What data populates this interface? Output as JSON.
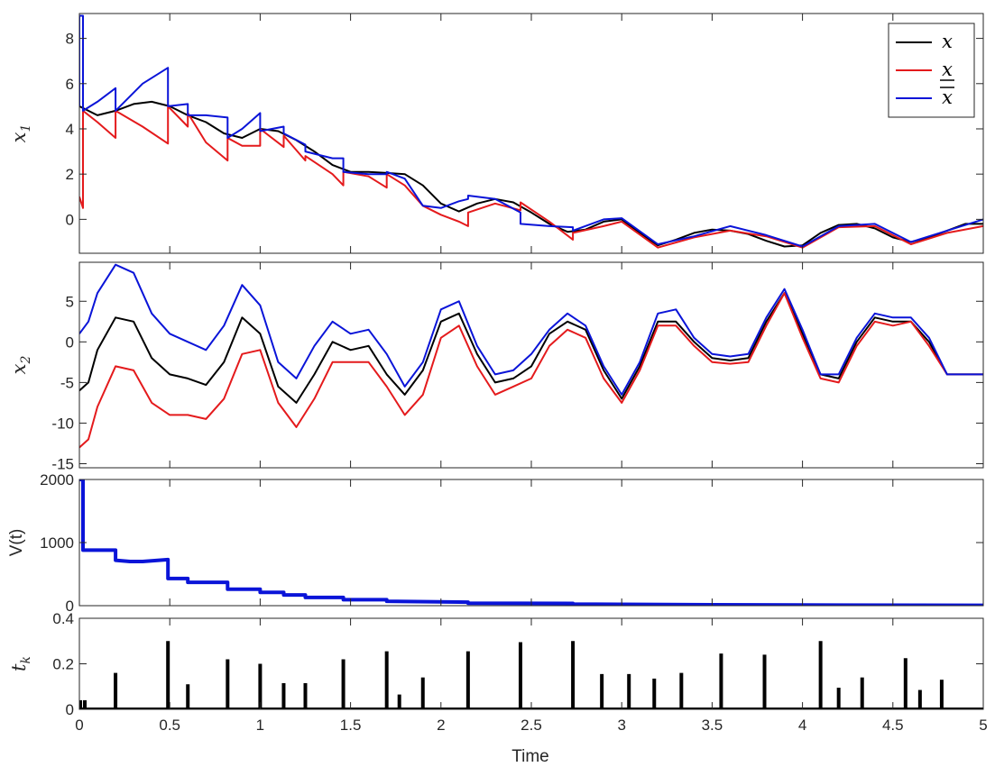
{
  "chart_data": [
    {
      "type": "line",
      "ylabel_main": "x",
      "ylabel_sub": "1",
      "xlabel": "",
      "xlim": [
        0,
        5
      ],
      "ylim": [
        -1.5,
        9.1
      ],
      "yticks": [
        0,
        2,
        4,
        6,
        8
      ],
      "xticks": [],
      "legend": {
        "placement": "top-right",
        "entries": [
          {
            "label": "x",
            "accent": "none",
            "color": "#000000"
          },
          {
            "label": "x",
            "accent": "under",
            "color": "#e41a1c"
          },
          {
            "label": "x",
            "accent": "over",
            "color": "#0a14d8"
          }
        ]
      },
      "series": [
        {
          "name": "x",
          "color": "#000000",
          "x": [
            0,
            0.1,
            0.2,
            0.3,
            0.4,
            0.5,
            0.6,
            0.7,
            0.8,
            0.9,
            1.0,
            1.1,
            1.2,
            1.3,
            1.4,
            1.5,
            1.6,
            1.7,
            1.8,
            1.9,
            2.0,
            2.1,
            2.2,
            2.3,
            2.4,
            2.5,
            2.6,
            2.7,
            2.8,
            2.9,
            3.0,
            3.1,
            3.2,
            3.3,
            3.4,
            3.5,
            3.6,
            3.7,
            3.8,
            3.9,
            4.0,
            4.1,
            4.2,
            4.3,
            4.4,
            4.5,
            4.6,
            4.7,
            4.8,
            4.9,
            5.0
          ],
          "y": [
            5.0,
            4.6,
            4.8,
            5.1,
            5.2,
            5.0,
            4.6,
            4.3,
            3.8,
            3.6,
            4.0,
            3.9,
            3.5,
            3.0,
            2.4,
            2.1,
            2.1,
            2.05,
            2.0,
            1.5,
            0.7,
            0.35,
            0.7,
            0.9,
            0.75,
            0.3,
            -0.2,
            -0.55,
            -0.45,
            -0.1,
            0.0,
            -0.6,
            -1.15,
            -0.9,
            -0.6,
            -0.45,
            -0.5,
            -0.65,
            -0.95,
            -1.2,
            -1.15,
            -0.6,
            -0.25,
            -0.2,
            -0.4,
            -0.8,
            -1.0,
            -0.8,
            -0.5,
            -0.2,
            -0.2
          ]
        },
        {
          "name": "x lower",
          "color": "#e41a1c",
          "x": [
            0,
            0.02,
            0.02,
            0.1,
            0.2,
            0.2,
            0.35,
            0.49,
            0.49,
            0.6,
            0.6,
            0.7,
            0.82,
            0.82,
            0.9,
            1.0,
            1.0,
            1.13,
            1.13,
            1.25,
            1.25,
            1.4,
            1.46,
            1.46,
            1.6,
            1.7,
            1.7,
            1.8,
            1.9,
            2.0,
            2.1,
            2.15,
            2.15,
            2.3,
            2.44,
            2.44,
            2.6,
            2.73,
            2.73,
            2.9,
            3.0,
            3.2,
            3.4,
            3.6,
            3.8,
            4.0,
            4.2,
            4.4,
            4.6,
            4.8,
            5.0
          ],
          "y": [
            1.0,
            0.5,
            4.8,
            4.3,
            3.6,
            4.8,
            4.1,
            3.35,
            5.0,
            4.1,
            4.7,
            3.4,
            2.6,
            3.6,
            3.25,
            3.25,
            4.0,
            3.2,
            3.7,
            2.6,
            2.8,
            2.0,
            1.5,
            2.1,
            1.9,
            1.4,
            2.0,
            1.5,
            0.6,
            0.2,
            -0.1,
            -0.3,
            0.3,
            0.7,
            0.4,
            0.75,
            -0.1,
            -0.9,
            -0.6,
            -0.3,
            -0.1,
            -1.25,
            -0.8,
            -0.5,
            -0.75,
            -1.25,
            -0.35,
            -0.3,
            -1.1,
            -0.6,
            -0.3
          ]
        },
        {
          "name": "x upper",
          "color": "#0a14d8",
          "x": [
            0,
            0.0,
            0.02,
            0.02,
            0.1,
            0.2,
            0.2,
            0.35,
            0.49,
            0.49,
            0.6,
            0.6,
            0.7,
            0.82,
            0.82,
            0.9,
            1.0,
            1.0,
            1.13,
            1.13,
            1.25,
            1.25,
            1.4,
            1.46,
            1.46,
            1.6,
            1.7,
            1.7,
            1.8,
            1.9,
            2.0,
            2.1,
            2.15,
            2.15,
            2.3,
            2.44,
            2.44,
            2.6,
            2.73,
            2.73,
            2.9,
            3.0,
            3.2,
            3.4,
            3.6,
            3.8,
            4.0,
            4.2,
            4.4,
            4.6,
            4.8,
            5.0
          ],
          "y": [
            5.0,
            9.0,
            9.0,
            4.8,
            5.2,
            5.8,
            4.8,
            6.0,
            6.7,
            5.0,
            5.1,
            4.6,
            4.6,
            4.5,
            3.6,
            4.0,
            4.7,
            3.9,
            4.1,
            3.8,
            3.3,
            3.0,
            2.7,
            2.7,
            2.1,
            2.0,
            2.0,
            2.1,
            1.8,
            0.6,
            0.5,
            0.8,
            0.9,
            1.05,
            0.9,
            0.3,
            -0.2,
            -0.3,
            -0.35,
            -0.5,
            0.0,
            0.05,
            -1.1,
            -0.75,
            -0.3,
            -0.7,
            -1.2,
            -0.3,
            -0.2,
            -1.0,
            -0.5,
            0.0
          ]
        }
      ]
    },
    {
      "type": "line",
      "ylabel_main": "x",
      "ylabel_sub": "2",
      "xlabel": "",
      "xlim": [
        0,
        5
      ],
      "ylim": [
        -15.5,
        9.8
      ],
      "yticks": [
        -15,
        -10,
        -5,
        0,
        5
      ],
      "xticks": [],
      "series": [
        {
          "name": "x",
          "color": "#000000",
          "x": [
            0,
            0.05,
            0.1,
            0.2,
            0.3,
            0.4,
            0.5,
            0.6,
            0.7,
            0.8,
            0.9,
            1.0,
            1.1,
            1.2,
            1.3,
            1.4,
            1.5,
            1.6,
            1.7,
            1.8,
            1.9,
            2.0,
            2.1,
            2.2,
            2.3,
            2.4,
            2.5,
            2.6,
            2.7,
            2.8,
            2.9,
            3.0,
            3.1,
            3.2,
            3.3,
            3.4,
            3.5,
            3.6,
            3.7,
            3.8,
            3.9,
            4.0,
            4.1,
            4.2,
            4.3,
            4.4,
            4.5,
            4.6,
            4.7,
            4.8,
            4.9,
            5.0
          ],
          "y": [
            -6.0,
            -5.0,
            -1.0,
            3.0,
            2.5,
            -2.0,
            -4.0,
            -4.5,
            -5.3,
            -2.5,
            3.0,
            1.0,
            -5.5,
            -7.5,
            -4.0,
            0.0,
            -1.0,
            -0.5,
            -4.0,
            -6.5,
            -3.5,
            2.5,
            3.5,
            -1.5,
            -5.0,
            -4.5,
            -3.0,
            1.0,
            2.5,
            1.5,
            -3.5,
            -7.0,
            -3.0,
            2.5,
            2.5,
            0.0,
            -2.0,
            -2.3,
            -2.0,
            2.5,
            6.0,
            1.0,
            -4.0,
            -4.5,
            0.0,
            3.0,
            2.5,
            2.5,
            0.0,
            -4.0,
            -4.0,
            -4.0
          ]
        },
        {
          "name": "x lower",
          "color": "#e41a1c",
          "x": [
            0,
            0.05,
            0.1,
            0.2,
            0.3,
            0.4,
            0.5,
            0.6,
            0.7,
            0.8,
            0.9,
            1.0,
            1.1,
            1.2,
            1.3,
            1.4,
            1.5,
            1.6,
            1.7,
            1.8,
            1.9,
            2.0,
            2.1,
            2.2,
            2.3,
            2.4,
            2.5,
            2.6,
            2.7,
            2.8,
            2.9,
            3.0,
            3.1,
            3.2,
            3.3,
            3.4,
            3.5,
            3.6,
            3.7,
            3.8,
            3.9,
            4.0,
            4.1,
            4.2,
            4.3,
            4.4,
            4.5,
            4.6,
            4.7,
            4.8,
            4.9,
            5.0
          ],
          "y": [
            -13.0,
            -12.0,
            -8.0,
            -3.0,
            -3.5,
            -7.5,
            -9.0,
            -9.0,
            -9.5,
            -7.0,
            -1.5,
            -1.0,
            -7.5,
            -10.5,
            -7.0,
            -2.5,
            -2.5,
            -2.5,
            -5.5,
            -9.0,
            -6.5,
            0.5,
            2.0,
            -3.0,
            -6.5,
            -5.5,
            -4.5,
            -0.5,
            1.5,
            0.5,
            -4.5,
            -7.5,
            -3.5,
            2.0,
            2.0,
            -0.5,
            -2.5,
            -2.7,
            -2.5,
            2.0,
            6.0,
            0.5,
            -4.5,
            -5.0,
            -0.5,
            2.5,
            2.0,
            2.5,
            -0.5,
            -4.0,
            -4.0,
            -4.0
          ]
        },
        {
          "name": "x upper",
          "color": "#0a14d8",
          "x": [
            0,
            0.05,
            0.1,
            0.2,
            0.3,
            0.4,
            0.5,
            0.6,
            0.7,
            0.8,
            0.9,
            1.0,
            1.1,
            1.2,
            1.3,
            1.4,
            1.5,
            1.6,
            1.7,
            1.8,
            1.9,
            2.0,
            2.1,
            2.2,
            2.3,
            2.4,
            2.5,
            2.6,
            2.7,
            2.8,
            2.9,
            3.0,
            3.1,
            3.2,
            3.3,
            3.4,
            3.5,
            3.6,
            3.7,
            3.8,
            3.9,
            4.0,
            4.1,
            4.2,
            4.3,
            4.4,
            4.5,
            4.6,
            4.7,
            4.8,
            4.9,
            5.0
          ],
          "y": [
            1.0,
            2.5,
            6.0,
            9.5,
            8.5,
            3.5,
            1.0,
            0.0,
            -1.0,
            2.0,
            7.0,
            4.5,
            -2.5,
            -4.5,
            -0.5,
            2.5,
            1.0,
            1.5,
            -1.5,
            -5.5,
            -2.5,
            4.0,
            5.0,
            -0.5,
            -4.0,
            -3.5,
            -1.5,
            1.5,
            3.5,
            2.0,
            -3.0,
            -6.5,
            -2.5,
            3.5,
            4.0,
            0.5,
            -1.5,
            -1.8,
            -1.5,
            3.0,
            6.5,
            1.5,
            -4.0,
            -4.0,
            0.5,
            3.5,
            3.0,
            3.0,
            0.5,
            -4.0,
            -4.0,
            -4.0
          ]
        }
      ]
    },
    {
      "type": "line",
      "ylabel_main": "V(t)",
      "xlabel": "",
      "xlim": [
        0,
        5
      ],
      "ylim": [
        0,
        2000
      ],
      "yticks": [
        0,
        1000,
        2000
      ],
      "xticks": [],
      "series": [
        {
          "name": "",
          "color": "#0a14d8",
          "x": [
            0,
            0.02,
            0.02,
            0.2,
            0.2,
            0.28,
            0.35,
            0.49,
            0.49,
            0.6,
            0.6,
            0.82,
            0.82,
            1.0,
            1.0,
            1.13,
            1.13,
            1.25,
            1.25,
            1.46,
            1.46,
            1.7,
            1.7,
            2.15,
            2.15,
            2.73,
            2.73,
            3.5,
            4.2,
            5.0
          ],
          "y": [
            2000,
            2000,
            880,
            880,
            720,
            700,
            700,
            730,
            430,
            430,
            370,
            370,
            260,
            260,
            210,
            210,
            170,
            170,
            130,
            130,
            95,
            95,
            70,
            55,
            40,
            35,
            25,
            15,
            8,
            5
          ]
        }
      ]
    },
    {
      "type": "bar",
      "ylabel_main": "t",
      "ylabel_sub": "k",
      "xlabel": "Time",
      "xlim": [
        0,
        5
      ],
      "ylim": [
        0,
        0.4
      ],
      "yticks": [
        0,
        0.2,
        0.4
      ],
      "xticks": [
        0,
        0.5,
        1,
        1.5,
        2,
        2.5,
        3,
        3.5,
        4,
        4.5,
        5
      ],
      "xtick_labels": [
        "0",
        "0.5",
        "1",
        "1.5",
        "2",
        "2.5",
        "3",
        "3.5",
        "4",
        "4.5",
        "5"
      ],
      "ytick_labels": [
        "0",
        "0.2",
        "0.4"
      ],
      "color": "#000000",
      "x": [
        0.005,
        0.03,
        0.2,
        0.49,
        0.6,
        0.82,
        1.0,
        1.13,
        1.25,
        1.46,
        1.7,
        1.77,
        1.9,
        2.15,
        2.44,
        2.73,
        2.89,
        3.04,
        3.18,
        3.33,
        3.55,
        3.79,
        4.1,
        4.2,
        4.33,
        4.57,
        4.65,
        4.77
      ],
      "values": [
        0.04,
        0.04,
        0.16,
        0.3,
        0.11,
        0.22,
        0.2,
        0.115,
        0.115,
        0.22,
        0.255,
        0.065,
        0.14,
        0.255,
        0.295,
        0.3,
        0.155,
        0.155,
        0.135,
        0.16,
        0.245,
        0.24,
        0.3,
        0.095,
        0.14,
        0.225,
        0.085,
        0.13
      ]
    }
  ],
  "ytick_labels_top": [
    "0",
    "2",
    "4",
    "6",
    "8"
  ],
  "ytick_labels_x2": [
    "-15",
    "-10",
    "-5",
    "0",
    "5"
  ],
  "ytick_labels_v": [
    "0",
    "1000",
    "2000"
  ]
}
